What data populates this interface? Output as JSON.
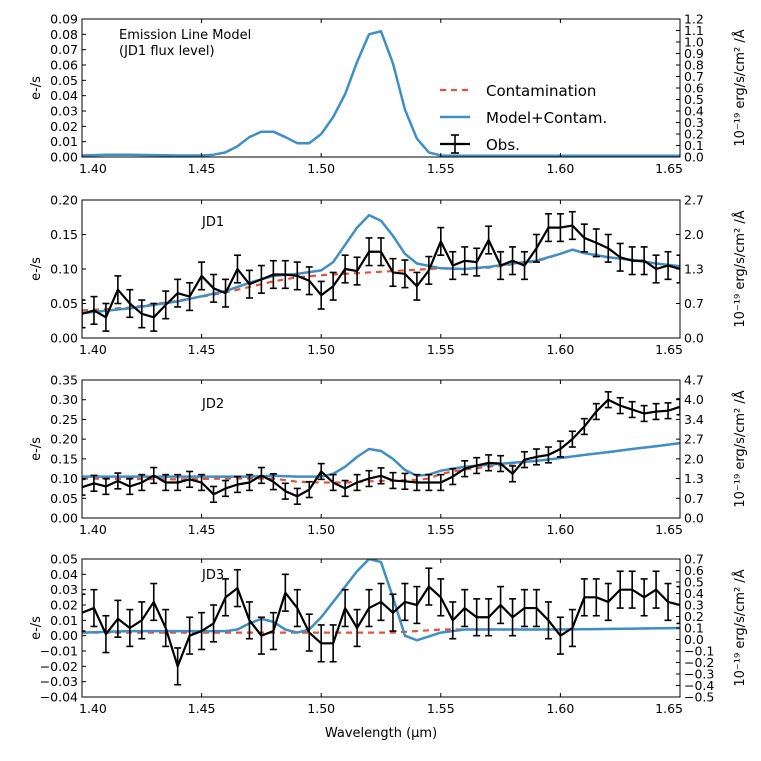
{
  "chart_data": {
    "type": "line",
    "xlabel": "Wavelength (μm)",
    "xlim": [
      1.4,
      1.65
    ],
    "xticks": [
      1.4,
      1.45,
      1.5,
      1.55,
      1.6,
      1.65
    ],
    "xtick_labels": [
      "1.40",
      "1.45",
      "1.50",
      "1.55",
      "1.60",
      "1.65"
    ],
    "colors": {
      "model": "#3f8fc4",
      "contamination": "#e8503a",
      "obs": "#000000"
    },
    "legend": {
      "position": "right",
      "entries": [
        {
          "name": "Contamination",
          "style": "dashed",
          "color": "#e8503a"
        },
        {
          "name": "Model+Contam.",
          "style": "solid",
          "color": "#3f8fc4"
        },
        {
          "name": "Obs.",
          "style": "errorbar",
          "color": "#000000"
        }
      ]
    },
    "panels": [
      {
        "id": "model",
        "title": "Emission Line Model\n(JD1 flux level)",
        "ylabel": "e-/s",
        "ylim": [
          0,
          0.09
        ],
        "yticks": [
          "0.00",
          "0.01",
          "0.02",
          "0.03",
          "0.04",
          "0.05",
          "0.06",
          "0.07",
          "0.08",
          "0.09"
        ],
        "right_ylabel": "10⁻¹⁹ erg/s/cm² /Å",
        "right_ylim": [
          0,
          1.2
        ],
        "right_yticks": [
          "0.0",
          "0.1",
          "0.2",
          "0.3",
          "0.4",
          "0.5",
          "0.6",
          "0.7",
          "0.8",
          "0.9",
          "1.0",
          "1.1",
          "1.2"
        ],
        "model": {
          "x": [
            1.4,
            1.41,
            1.42,
            1.43,
            1.44,
            1.45,
            1.455,
            1.46,
            1.465,
            1.47,
            1.475,
            1.48,
            1.485,
            1.49,
            1.495,
            1.5,
            1.505,
            1.51,
            1.515,
            1.52,
            1.525,
            1.53,
            1.535,
            1.54,
            1.545,
            1.55,
            1.56,
            1.57,
            1.58,
            1.59,
            1.6,
            1.62,
            1.65
          ],
          "y": [
            0.001,
            0.0015,
            0.0015,
            0.0012,
            0.001,
            0.001,
            0.0015,
            0.003,
            0.007,
            0.013,
            0.0165,
            0.0165,
            0.013,
            0.009,
            0.009,
            0.015,
            0.026,
            0.041,
            0.062,
            0.08,
            0.082,
            0.061,
            0.031,
            0.012,
            0.003,
            0.001,
            0.0008,
            0.0008,
            0.0008,
            0.0008,
            0.0008,
            0.0008,
            0.0008
          ]
        }
      },
      {
        "id": "jd1",
        "title": "JD1",
        "ylabel": "e-/s",
        "ylim": [
          0,
          0.2
        ],
        "yticks": [
          "0.00",
          "0.05",
          "0.10",
          "0.15",
          "0.20"
        ],
        "right_ylabel": "10⁻¹⁹ erg/s/cm² /Å",
        "right_ylim": [
          0,
          2.7
        ],
        "right_yticks": [
          "0.0",
          "0.7",
          "1.3",
          "2.0",
          "2.7"
        ],
        "model": {
          "x": [
            1.4,
            1.42,
            1.44,
            1.46,
            1.47,
            1.48,
            1.49,
            1.5,
            1.505,
            1.51,
            1.515,
            1.52,
            1.525,
            1.53,
            1.535,
            1.54,
            1.55,
            1.56,
            1.57,
            1.58,
            1.59,
            1.6,
            1.605,
            1.61,
            1.62,
            1.63,
            1.64,
            1.65
          ],
          "y": [
            0.036,
            0.043,
            0.053,
            0.068,
            0.08,
            0.09,
            0.093,
            0.098,
            0.11,
            0.135,
            0.16,
            0.178,
            0.17,
            0.148,
            0.122,
            0.108,
            0.101,
            0.1,
            0.103,
            0.108,
            0.112,
            0.122,
            0.128,
            0.123,
            0.117,
            0.113,
            0.108,
            0.104
          ]
        },
        "contamination": {
          "x": [
            1.4,
            1.42,
            1.44,
            1.46,
            1.47,
            1.48,
            1.49,
            1.5,
            1.51,
            1.52,
            1.53,
            1.54,
            1.55,
            1.56,
            1.57,
            1.58,
            1.59,
            1.6,
            1.605,
            1.61,
            1.62,
            1.63,
            1.64,
            1.65
          ],
          "y": [
            0.04,
            0.044,
            0.054,
            0.066,
            0.074,
            0.082,
            0.088,
            0.091,
            0.093,
            0.095,
            0.097,
            0.099,
            0.101,
            0.1,
            0.102,
            0.107,
            0.111,
            0.122,
            0.128,
            0.124,
            0.117,
            0.113,
            0.108,
            0.104
          ]
        },
        "obs": {
          "x": [
            1.4,
            1.405,
            1.41,
            1.415,
            1.42,
            1.425,
            1.43,
            1.435,
            1.44,
            1.445,
            1.45,
            1.455,
            1.46,
            1.465,
            1.47,
            1.475,
            1.48,
            1.485,
            1.49,
            1.495,
            1.5,
            1.505,
            1.51,
            1.515,
            1.52,
            1.525,
            1.53,
            1.535,
            1.54,
            1.545,
            1.55,
            1.555,
            1.56,
            1.565,
            1.57,
            1.575,
            1.58,
            1.585,
            1.59,
            1.595,
            1.6,
            1.605,
            1.61,
            1.615,
            1.62,
            1.625,
            1.63,
            1.635,
            1.64,
            1.645,
            1.65
          ],
          "y": [
            0.035,
            0.04,
            0.03,
            0.07,
            0.05,
            0.035,
            0.03,
            0.048,
            0.065,
            0.06,
            0.09,
            0.072,
            0.065,
            0.1,
            0.078,
            0.085,
            0.092,
            0.092,
            0.09,
            0.083,
            0.062,
            0.075,
            0.1,
            0.097,
            0.125,
            0.125,
            0.095,
            0.093,
            0.075,
            0.098,
            0.14,
            0.105,
            0.112,
            0.11,
            0.142,
            0.105,
            0.112,
            0.105,
            0.13,
            0.16,
            0.16,
            0.163,
            0.145,
            0.138,
            0.13,
            0.117,
            0.112,
            0.112,
            0.1,
            0.105,
            0.1
          ],
          "err": 0.02
        }
      },
      {
        "id": "jd2",
        "title": "JD2",
        "ylabel": "e-/s",
        "ylim": [
          0,
          0.35
        ],
        "yticks": [
          "0.00",
          "0.05",
          "0.10",
          "0.15",
          "0.20",
          "0.25",
          "0.30",
          "0.35"
        ],
        "right_ylabel": "10⁻¹⁹ erg/s/cm² /Å",
        "right_ylim": [
          0,
          4.7
        ],
        "right_yticks": [
          "0.0",
          "0.7",
          "1.3",
          "2.0",
          "2.7",
          "3.4",
          "4.0",
          "4.7"
        ],
        "model": {
          "x": [
            1.4,
            1.44,
            1.47,
            1.48,
            1.49,
            1.5,
            1.505,
            1.51,
            1.515,
            1.52,
            1.525,
            1.53,
            1.535,
            1.54,
            1.545,
            1.55,
            1.56,
            1.57,
            1.58,
            1.59,
            1.6,
            1.61,
            1.62,
            1.63,
            1.64,
            1.65
          ],
          "y": [
            0.105,
            0.105,
            0.105,
            0.107,
            0.105,
            0.105,
            0.112,
            0.13,
            0.155,
            0.175,
            0.17,
            0.15,
            0.122,
            0.107,
            0.11,
            0.12,
            0.13,
            0.135,
            0.14,
            0.145,
            0.152,
            0.16,
            0.167,
            0.175,
            0.182,
            0.19
          ]
        },
        "contamination": {
          "x": [
            1.4,
            1.44,
            1.46,
            1.48,
            1.49,
            1.5,
            1.51,
            1.52,
            1.53,
            1.54,
            1.545,
            1.55,
            1.56,
            1.57,
            1.58,
            1.59,
            1.6,
            1.61,
            1.62,
            1.63,
            1.64,
            1.65
          ],
          "y": [
            0.1,
            0.098,
            0.1,
            0.1,
            0.092,
            0.09,
            0.09,
            0.093,
            0.095,
            0.097,
            0.1,
            0.112,
            0.123,
            0.13,
            0.138,
            0.145,
            0.152,
            0.16,
            0.167,
            0.175,
            0.182,
            0.19
          ]
        },
        "obs": {
          "x": [
            1.4,
            1.405,
            1.41,
            1.415,
            1.42,
            1.425,
            1.43,
            1.435,
            1.44,
            1.445,
            1.45,
            1.455,
            1.46,
            1.465,
            1.47,
            1.475,
            1.48,
            1.485,
            1.49,
            1.495,
            1.5,
            1.505,
            1.51,
            1.515,
            1.52,
            1.525,
            1.53,
            1.535,
            1.54,
            1.545,
            1.55,
            1.555,
            1.56,
            1.565,
            1.57,
            1.575,
            1.58,
            1.585,
            1.59,
            1.595,
            1.6,
            1.605,
            1.61,
            1.615,
            1.62,
            1.625,
            1.63,
            1.635,
            1.64,
            1.645,
            1.65
          ],
          "y": [
            0.078,
            0.088,
            0.08,
            0.094,
            0.08,
            0.09,
            0.108,
            0.09,
            0.09,
            0.098,
            0.09,
            0.06,
            0.075,
            0.085,
            0.09,
            0.108,
            0.092,
            0.068,
            0.055,
            0.072,
            0.118,
            0.09,
            0.075,
            0.09,
            0.1,
            0.107,
            0.095,
            0.093,
            0.09,
            0.09,
            0.09,
            0.105,
            0.125,
            0.133,
            0.14,
            0.138,
            0.112,
            0.148,
            0.155,
            0.16,
            0.175,
            0.2,
            0.232,
            0.27,
            0.3,
            0.285,
            0.275,
            0.265,
            0.27,
            0.272,
            0.282
          ],
          "err": 0.02
        }
      },
      {
        "id": "jd3",
        "title": "JD3",
        "ylabel": "e-/s",
        "ylim": [
          -0.04,
          0.05
        ],
        "yticks": [
          "−0.04",
          "−0.03",
          "−0.02",
          "−0.01",
          "0.00",
          "0.01",
          "0.02",
          "0.03",
          "0.04",
          "0.05"
        ],
        "right_ylabel": "10⁻¹⁹ erg/s/cm² /Å",
        "right_ylim": [
          -0.5,
          0.7
        ],
        "right_yticks": [
          "−0.5",
          "−0.4",
          "−0.3",
          "−0.2",
          "−0.1",
          "0.0",
          "0.1",
          "0.2",
          "0.3",
          "0.4",
          "0.5",
          "0.6",
          "0.7"
        ],
        "model": {
          "x": [
            1.4,
            1.42,
            1.44,
            1.46,
            1.465,
            1.47,
            1.475,
            1.48,
            1.485,
            1.49,
            1.495,
            1.5,
            1.505,
            1.51,
            1.515,
            1.52,
            1.525,
            1.53,
            1.535,
            1.54,
            1.55,
            1.56,
            1.6,
            1.65
          ],
          "y": [
            0.002,
            0.003,
            0.003,
            0.003,
            0.004,
            0.008,
            0.011,
            0.009,
            0.004,
            0.002,
            0.004,
            0.012,
            0.022,
            0.032,
            0.042,
            0.05,
            0.048,
            0.025,
            0.0,
            -0.003,
            0.002,
            0.004,
            0.004,
            0.005
          ]
        },
        "contamination": {
          "x": [
            1.4,
            1.44,
            1.46,
            1.5,
            1.52,
            1.53,
            1.55,
            1.6,
            1.65
          ],
          "y": [
            0.002,
            0.002,
            0.002,
            0.002,
            0.002,
            0.002,
            0.004,
            0.004,
            0.005
          ]
        },
        "obs": {
          "x": [
            1.4,
            1.405,
            1.41,
            1.415,
            1.42,
            1.425,
            1.43,
            1.435,
            1.44,
            1.445,
            1.45,
            1.455,
            1.46,
            1.465,
            1.47,
            1.475,
            1.48,
            1.485,
            1.49,
            1.495,
            1.5,
            1.505,
            1.51,
            1.515,
            1.52,
            1.525,
            1.53,
            1.535,
            1.54,
            1.545,
            1.55,
            1.555,
            1.56,
            1.565,
            1.57,
            1.575,
            1.58,
            1.585,
            1.59,
            1.595,
            1.6,
            1.605,
            1.61,
            1.615,
            1.62,
            1.625,
            1.63,
            1.635,
            1.64,
            1.645,
            1.65
          ],
          "y": [
            0.015,
            0.018,
            0.001,
            0.011,
            0.005,
            0.01,
            0.022,
            0.005,
            -0.02,
            0.0,
            0.003,
            0.008,
            0.025,
            0.031,
            0.01,
            0.0,
            0.003,
            0.028,
            0.018,
            0.002,
            -0.005,
            -0.005,
            0.018,
            0.005,
            0.018,
            0.022,
            0.015,
            0.022,
            0.02,
            0.032,
            0.025,
            0.01,
            0.018,
            0.012,
            0.012,
            0.02,
            0.012,
            0.018,
            0.018,
            0.01,
            0.0,
            0.005,
            0.025,
            0.025,
            0.022,
            0.03,
            0.03,
            0.025,
            0.03,
            0.022,
            0.02
          ],
          "err": 0.012
        }
      }
    ]
  }
}
